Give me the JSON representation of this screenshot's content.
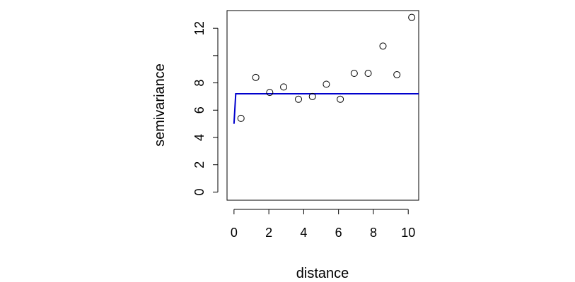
{
  "chart_data": {
    "type": "scatter",
    "xlabel": "distance",
    "ylabel": "semivariance",
    "xlim": [
      -0.4,
      10.6
    ],
    "ylim": [
      -0.6,
      13.3
    ],
    "x_ticks": [
      "0",
      "2",
      "4",
      "6",
      "8",
      "10"
    ],
    "y_ticks": [
      "0",
      "2",
      "4",
      "6",
      "8",
      "",
      "12"
    ],
    "grid": false,
    "legend": "none",
    "points": {
      "x": [
        0.4,
        1.25,
        2.05,
        2.85,
        3.7,
        4.5,
        5.3,
        6.1,
        6.9,
        7.7,
        8.55,
        9.35,
        10.2
      ],
      "y": [
        5.4,
        8.4,
        7.3,
        7.7,
        6.8,
        7.0,
        7.9,
        6.8,
        8.7,
        8.7,
        10.7,
        8.6,
        12.8
      ],
      "marker": "open-circle",
      "color": "#000000"
    },
    "fitted_line": {
      "x": [
        0,
        0.1,
        10.6
      ],
      "y": [
        5.0,
        7.2,
        7.2
      ],
      "color": "#0000cd"
    }
  }
}
